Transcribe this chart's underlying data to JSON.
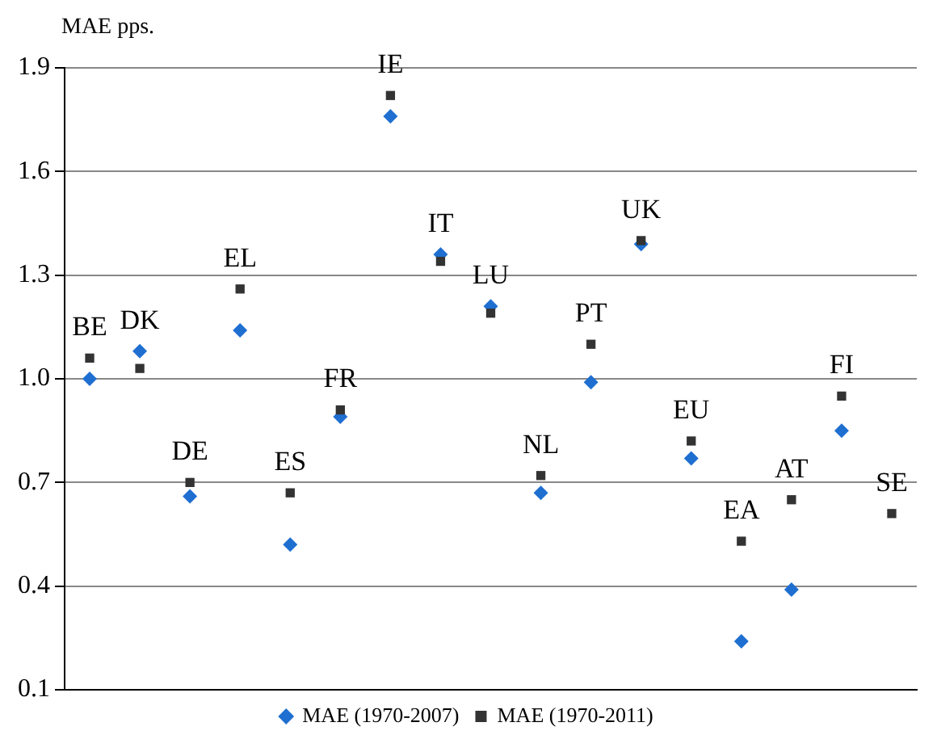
{
  "chart_data": {
    "type": "scatter",
    "ylabel": "MAE pps.",
    "categories": [
      "BE",
      "DK",
      "DE",
      "EL",
      "ES",
      "FR",
      "IE",
      "IT",
      "LU",
      "NL",
      "PT",
      "UK",
      "EU",
      "EA",
      "AT",
      "FI",
      "SE"
    ],
    "series": [
      {
        "name": "MAE (1970-2007)",
        "color": "#1f6fd1",
        "marker": "diamond",
        "values": [
          1.0,
          1.08,
          0.66,
          1.14,
          0.52,
          0.89,
          1.76,
          1.36,
          1.21,
          0.67,
          0.99,
          1.39,
          0.77,
          0.24,
          0.39,
          0.85,
          null
        ]
      },
      {
        "name": "MAE (1970-2011)",
        "color": "#333333",
        "marker": "square",
        "values": [
          1.06,
          1.03,
          0.7,
          1.26,
          0.67,
          0.91,
          1.82,
          1.34,
          1.19,
          0.72,
          1.1,
          1.4,
          0.82,
          0.53,
          0.65,
          0.95,
          0.61
        ]
      }
    ],
    "ylim": [
      0.1,
      1.9
    ],
    "yticks": [
      0.1,
      0.4,
      0.7,
      {
        "value": 1,
        "label": "1.0"
      },
      1.3,
      1.6,
      1.9
    ],
    "grid": "y",
    "legend": "bottom"
  }
}
